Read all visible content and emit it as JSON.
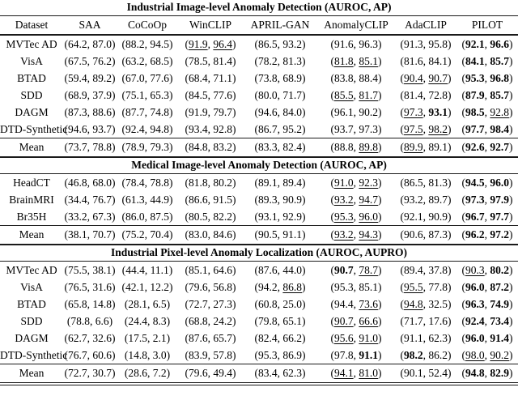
{
  "columns": [
    "Dataset",
    "SAA",
    "CoCoOp",
    "WinCLIP",
    "APRIL-GAN",
    "AnomalyCLIP",
    "AdaCLIP",
    "PILOT"
  ],
  "sections": [
    {
      "title": "Industrial Image-level Anomaly Detection (AUROC, AP)",
      "header": true,
      "rows": [
        {
          "dataset": "MVTec AD",
          "cells": [
            [
              "64.2",
              "n",
              "87.0",
              "n"
            ],
            [
              "88.2",
              "n",
              "94.5",
              "n"
            ],
            [
              "91.9",
              "u",
              "96.4",
              "u"
            ],
            [
              "86.5",
              "n",
              "93.2",
              "n"
            ],
            [
              "91.6",
              "n",
              "96.3",
              "n"
            ],
            [
              "91.3",
              "n",
              "95.8",
              "n"
            ],
            [
              "92.1",
              "b",
              "96.6",
              "b"
            ]
          ]
        },
        {
          "dataset": "VisA",
          "cells": [
            [
              "67.5",
              "n",
              "76.2",
              "n"
            ],
            [
              "63.2",
              "n",
              "68.5",
              "n"
            ],
            [
              "78.5",
              "n",
              "81.4",
              "n"
            ],
            [
              "78.2",
              "n",
              "81.3",
              "n"
            ],
            [
              "81.8",
              "u",
              "85.1",
              "u"
            ],
            [
              "81.6",
              "n",
              "84.1",
              "n"
            ],
            [
              "84.1",
              "b",
              "85.7",
              "b"
            ]
          ]
        },
        {
          "dataset": "BTAD",
          "cells": [
            [
              "59.4",
              "n",
              "89.2",
              "n"
            ],
            [
              "67.0",
              "n",
              "77.6",
              "n"
            ],
            [
              "68.4",
              "n",
              "71.1",
              "n"
            ],
            [
              "73.8",
              "n",
              "68.9",
              "n"
            ],
            [
              "83.8",
              "n",
              "88.4",
              "n"
            ],
            [
              "90.4",
              "u",
              "90.7",
              "u"
            ],
            [
              "95.3",
              "b",
              "96.8",
              "b"
            ]
          ]
        },
        {
          "dataset": "SDD",
          "cells": [
            [
              "68.9",
              "n",
              "37.9",
              "n"
            ],
            [
              "75.1",
              "n",
              "65.3",
              "n"
            ],
            [
              "84.5",
              "n",
              "77.6",
              "n"
            ],
            [
              "80.0",
              "n",
              "71.7",
              "n"
            ],
            [
              "85.5",
              "u",
              "81.7",
              "u"
            ],
            [
              "81.4",
              "n",
              "72.8",
              "n"
            ],
            [
              "87.9",
              "b",
              "85.7",
              "b"
            ]
          ]
        },
        {
          "dataset": "DAGM",
          "cells": [
            [
              "87.3",
              "n",
              "88.6",
              "n"
            ],
            [
              "87.7",
              "n",
              "74.8",
              "n"
            ],
            [
              "91.9",
              "n",
              "79.7",
              "n"
            ],
            [
              "94.6",
              "n",
              "84.0",
              "n"
            ],
            [
              "96.1",
              "n",
              "90.2",
              "n"
            ],
            [
              "97.3",
              "u",
              "93.1",
              "b"
            ],
            [
              "98.5",
              "b",
              "92.8",
              "u"
            ]
          ]
        },
        {
          "dataset": "DTD-Synthetic",
          "cells": [
            [
              "94.6",
              "n",
              "93.7",
              "n"
            ],
            [
              "92.4",
              "n",
              "94.8",
              "n"
            ],
            [
              "93.4",
              "n",
              "92.8",
              "n"
            ],
            [
              "86.7",
              "n",
              "95.2",
              "n"
            ],
            [
              "93.7",
              "n",
              "97.3",
              "n"
            ],
            [
              "97.5",
              "u",
              "98.2",
              "u"
            ],
            [
              "97.7",
              "b",
              "98.4",
              "b"
            ]
          ]
        }
      ],
      "mean": {
        "dataset": "Mean",
        "cells": [
          [
            "73.7",
            "n",
            "78.8",
            "n"
          ],
          [
            "78.9",
            "n",
            "79.3",
            "n"
          ],
          [
            "84.8",
            "n",
            "83.2",
            "n"
          ],
          [
            "83.3",
            "n",
            "82.4",
            "n"
          ],
          [
            "88.8",
            "n",
            "89.8",
            "u"
          ],
          [
            "89.9",
            "u",
            "89.1",
            "n"
          ],
          [
            "92.6",
            "b",
            "92.7",
            "b"
          ]
        ]
      }
    },
    {
      "title": "Medical Image-level Anomaly Detection (AUROC, AP)",
      "header": false,
      "rows": [
        {
          "dataset": "HeadCT",
          "cells": [
            [
              "46.8",
              "n",
              "68.0",
              "n"
            ],
            [
              "78.4",
              "n",
              "78.8",
              "n"
            ],
            [
              "81.8",
              "n",
              "80.2",
              "n"
            ],
            [
              "89.1",
              "n",
              "89.4",
              "n"
            ],
            [
              "91.0",
              "u",
              "92.3",
              "u"
            ],
            [
              "86.5",
              "n",
              "81.3",
              "n"
            ],
            [
              "94.5",
              "b",
              "96.0",
              "b"
            ]
          ]
        },
        {
          "dataset": "BrainMRI",
          "cells": [
            [
              "34.4",
              "n",
              "76.7",
              "n"
            ],
            [
              "61.3",
              "n",
              "44.9",
              "n"
            ],
            [
              "86.6",
              "n",
              "91.5",
              "n"
            ],
            [
              "89.3",
              "n",
              "90.9",
              "n"
            ],
            [
              "93.2",
              "u",
              "94.7",
              "u"
            ],
            [
              "93.2",
              "n",
              "89.7",
              "n"
            ],
            [
              "97.3",
              "b",
              "97.9",
              "b"
            ]
          ]
        },
        {
          "dataset": "Br35H",
          "cells": [
            [
              "33.2",
              "n",
              "67.3",
              "n"
            ],
            [
              "86.0",
              "n",
              "87.5",
              "n"
            ],
            [
              "80.5",
              "n",
              "82.2",
              "n"
            ],
            [
              "93.1",
              "n",
              "92.9",
              "n"
            ],
            [
              "95.3",
              "u",
              "96.0",
              "u"
            ],
            [
              "92.1",
              "n",
              "90.9",
              "n"
            ],
            [
              "96.7",
              "b",
              "97.7",
              "b"
            ]
          ]
        }
      ],
      "mean": {
        "dataset": "Mean",
        "cells": [
          [
            "38.1",
            "n",
            "70.7",
            "n"
          ],
          [
            "75.2",
            "n",
            "70.4",
            "n"
          ],
          [
            "83.0",
            "n",
            "84.6",
            "n"
          ],
          [
            "90.5",
            "n",
            "91.1",
            "n"
          ],
          [
            "93.2",
            "u",
            "94.3",
            "u"
          ],
          [
            "90.6",
            "n",
            "87.3",
            "n"
          ],
          [
            "96.2",
            "b",
            "97.2",
            "b"
          ]
        ]
      }
    },
    {
      "title": "Industrial Pixel-level Anomaly Localization (AUROC, AUPRO)",
      "header": false,
      "rows": [
        {
          "dataset": "MVTec AD",
          "cells": [
            [
              "75.5",
              "n",
              "38.1",
              "n"
            ],
            [
              "44.4",
              "n",
              "11.1",
              "n"
            ],
            [
              "85.1",
              "n",
              "64.6",
              "n"
            ],
            [
              "87.6",
              "n",
              "44.0",
              "n"
            ],
            [
              "90.7",
              "b",
              "78.7",
              "u"
            ],
            [
              "89.4",
              "n",
              "37.8",
              "n"
            ],
            [
              "90.3",
              "u",
              "80.2",
              "b"
            ]
          ]
        },
        {
          "dataset": "VisA",
          "cells": [
            [
              "76.5",
              "n",
              "31.6",
              "n"
            ],
            [
              "42.1",
              "n",
              "12.2",
              "n"
            ],
            [
              "79.6",
              "n",
              "56.8",
              "n"
            ],
            [
              "94.2",
              "n",
              "86.8",
              "u"
            ],
            [
              "95.3",
              "n",
              "85.1",
              "n"
            ],
            [
              "95.5",
              "u",
              "77.8",
              "n"
            ],
            [
              "96.0",
              "b",
              "87.2",
              "b"
            ]
          ]
        },
        {
          "dataset": "BTAD",
          "cells": [
            [
              "65.8",
              "n",
              "14.8",
              "n"
            ],
            [
              "28.1",
              "n",
              "6.5",
              "n"
            ],
            [
              "72.7",
              "n",
              "27.3",
              "n"
            ],
            [
              "60.8",
              "n",
              "25.0",
              "n"
            ],
            [
              "94.4",
              "n",
              "73.6",
              "u"
            ],
            [
              "94.8",
              "u",
              "32.5",
              "n"
            ],
            [
              "96.3",
              "b",
              "74.9",
              "b"
            ]
          ]
        },
        {
          "dataset": "SDD",
          "cells": [
            [
              "78.8",
              "n",
              "6.6",
              "n"
            ],
            [
              "24.4",
              "n",
              "8.3",
              "n"
            ],
            [
              "68.8",
              "n",
              "24.2",
              "n"
            ],
            [
              "79.8",
              "n",
              "65.1",
              "n"
            ],
            [
              "90.7",
              "u",
              "66.6",
              "u"
            ],
            [
              "71.7",
              "n",
              "17.6",
              "n"
            ],
            [
              "92.4",
              "b",
              "73.4",
              "b"
            ]
          ]
        },
        {
          "dataset": "DAGM",
          "cells": [
            [
              "62.7",
              "n",
              "32.6",
              "n"
            ],
            [
              "17.5",
              "n",
              "2.1",
              "n"
            ],
            [
              "87.6",
              "n",
              "65.7",
              "n"
            ],
            [
              "82.4",
              "n",
              "66.2",
              "n"
            ],
            [
              "95.6",
              "u",
              "91.0",
              "u"
            ],
            [
              "91.1",
              "n",
              "62.3",
              "n"
            ],
            [
              "96.0",
              "b",
              "91.4",
              "b"
            ]
          ]
        },
        {
          "dataset": "DTD-Synthetic",
          "cells": [
            [
              "76.7",
              "n",
              "60.6",
              "n"
            ],
            [
              "14.8",
              "n",
              "3.0",
              "n"
            ],
            [
              "83.9",
              "n",
              "57.8",
              "n"
            ],
            [
              "95.3",
              "n",
              "86.9",
              "n"
            ],
            [
              "97.8",
              "n",
              "91.1",
              "b"
            ],
            [
              "98.2",
              "b",
              "86.2",
              "n"
            ],
            [
              "98.0",
              "u",
              "90.2",
              "u"
            ]
          ]
        }
      ],
      "mean": {
        "dataset": "Mean",
        "cells": [
          [
            "72.7",
            "n",
            "30.7",
            "n"
          ],
          [
            "28.6",
            "n",
            "7.2",
            "n"
          ],
          [
            "79.6",
            "n",
            "49.4",
            "n"
          ],
          [
            "83.4",
            "n",
            "62.3",
            "n"
          ],
          [
            "94.1",
            "u",
            "81.0",
            "u"
          ],
          [
            "90.1",
            "n",
            "52.4",
            "n"
          ],
          [
            "94.8",
            "b",
            "82.9",
            "b"
          ]
        ]
      }
    }
  ]
}
